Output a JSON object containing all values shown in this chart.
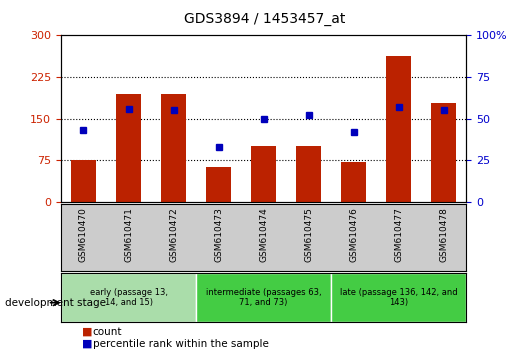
{
  "title": "GDS3894 / 1453457_at",
  "samples": [
    "GSM610470",
    "GSM610471",
    "GSM610472",
    "GSM610473",
    "GSM610474",
    "GSM610475",
    "GSM610476",
    "GSM610477",
    "GSM610478"
  ],
  "counts": [
    75,
    195,
    195,
    62,
    100,
    100,
    72,
    262,
    178
  ],
  "percentile_ranks": [
    43,
    56,
    55,
    33,
    50,
    52,
    42,
    57,
    55
  ],
  "ylim_left": [
    0,
    300
  ],
  "ylim_right": [
    0,
    100
  ],
  "yticks_left": [
    0,
    75,
    150,
    225,
    300
  ],
  "yticks_right": [
    0,
    25,
    50,
    75,
    100
  ],
  "bar_color": "#bb2200",
  "dot_color": "#0000bb",
  "stage_groups": [
    {
      "label": "early (passage 13,\n14, and 15)",
      "indices": [
        0,
        1,
        2
      ],
      "color": "#aaddaa"
    },
    {
      "label": "intermediate (passages 63,\n71, and 73)",
      "indices": [
        3,
        4,
        5
      ],
      "color": "#44cc44"
    },
    {
      "label": "late (passage 136, 142, and\n143)",
      "indices": [
        6,
        7,
        8
      ],
      "color": "#44cc44"
    }
  ],
  "legend_count_label": "count",
  "legend_percentile_label": "percentile rank within the sample",
  "dev_stage_label": "development stage",
  "left_ylabel_color": "#cc2200",
  "right_ylabel_color": "#0000cc",
  "tick_bg_color": "#cccccc",
  "plot_bg_color": "#ffffff"
}
